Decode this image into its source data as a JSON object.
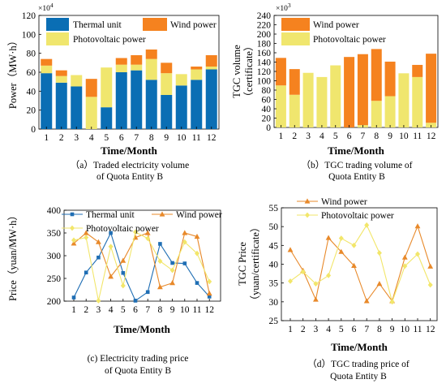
{
  "colors": {
    "thermal": "#0a6eb4",
    "wind": "#f5821f",
    "pv": "#f0e66e",
    "line_thermal": "#1f6eb4",
    "line_wind": "#e8892a",
    "line_pv": "#f2e66a"
  },
  "chart_data": [
    {
      "id": "a",
      "type": "bar",
      "stacked": true,
      "caption_line1": "（a）Traded electricity volume",
      "caption_line2": "of Quota Entity B",
      "xlabel": "Time/Month",
      "ylabel": "Power（MW·h）",
      "exponent": "×10",
      "exponent_power": "4",
      "ylim": [
        0,
        120
      ],
      "yticks": [
        0,
        20,
        40,
        60,
        80,
        100,
        120
      ],
      "categories": [
        "1",
        "2",
        "3",
        "4",
        "5",
        "6",
        "7",
        "8",
        "9",
        "10",
        "11",
        "12"
      ],
      "series": [
        {
          "name": "Thermal unit",
          "color_key": "thermal",
          "values": [
            59,
            49,
            45,
            0,
            23,
            60,
            62,
            52,
            36,
            46,
            52,
            63
          ]
        },
        {
          "name": "Photovoltaic power",
          "color_key": "pv",
          "values": [
            8,
            7,
            12,
            34,
            42,
            8,
            6,
            22,
            23,
            12,
            11,
            3
          ]
        },
        {
          "name": "Wind power",
          "color_key": "wind",
          "values": [
            7,
            6,
            0,
            19,
            0,
            7,
            10,
            10,
            11,
            0,
            3,
            12
          ]
        }
      ],
      "legend": [
        {
          "name": "Thermal unit",
          "color_key": "thermal"
        },
        {
          "name": "Wind power",
          "color_key": "wind"
        },
        {
          "name": "Photovoltaic power",
          "color_key": "pv"
        }
      ]
    },
    {
      "id": "b",
      "type": "bar",
      "stacked": true,
      "caption_line1": "（b）TGC trading volume of",
      "caption_line2": "Quota Entity B",
      "xlabel": "Time/Month",
      "ylabel_line1": "TGC volume",
      "ylabel_line2": "（certificate）",
      "exponent": "×10",
      "exponent_power": "3",
      "ylim": [
        0,
        240
      ],
      "yticks": [
        0,
        20,
        40,
        60,
        80,
        100,
        120,
        140,
        160,
        180,
        200,
        220,
        240
      ],
      "categories": [
        "1",
        "2",
        "3",
        "4",
        "5",
        "6",
        "7",
        "8",
        "9",
        "10",
        "11",
        "12"
      ],
      "series": [
        {
          "name": "Photovoltaic power",
          "color_key": "pv",
          "values": [
            90,
            70,
            117,
            108,
            133,
            0,
            5,
            57,
            67,
            116,
            108,
            10
          ]
        },
        {
          "name": "Wind power",
          "color_key": "wind",
          "values": [
            59,
            55,
            0,
            0,
            0,
            151,
            152,
            111,
            74,
            0,
            26,
            148
          ]
        }
      ],
      "legend": [
        {
          "name": "Wind power",
          "color_key": "wind"
        },
        {
          "name": "Photovoltaic power",
          "color_key": "pv"
        }
      ]
    },
    {
      "id": "c",
      "type": "line",
      "caption_line1": "(c)  Electricity trading price",
      "caption_line2": "of Quota Entity B",
      "xlabel": "Time/Month",
      "ylabel": "Price（yuan/MW·h）",
      "ylim": [
        200,
        400
      ],
      "yticks": [
        200,
        250,
        300,
        350,
        400
      ],
      "x": [
        "1",
        "2",
        "3",
        "4",
        "5",
        "6",
        "7",
        "8",
        "9",
        "10",
        "11",
        "12"
      ],
      "series": [
        {
          "name": "Thermal unit",
          "color_key": "line_thermal",
          "marker": "square",
          "values": [
            208,
            263,
            296,
            350,
            262,
            201,
            220,
            326,
            284,
            283,
            240,
            210
          ]
        },
        {
          "name": "Wind power",
          "color_key": "line_wind",
          "marker": "triangle",
          "values": [
            327,
            350,
            330,
            254,
            289,
            340,
            350,
            231,
            240,
            350,
            342,
            217
          ]
        },
        {
          "name": "Photovoltaic power",
          "color_key": "line_pv",
          "marker": "diamond",
          "values": [
            334,
            340,
            201,
            320,
            234,
            352,
            338,
            288,
            268,
            330,
            305,
            243
          ]
        }
      ],
      "legend": [
        {
          "name": "Thermal unit",
          "color_key": "line_thermal",
          "marker": "square"
        },
        {
          "name": "Wind power",
          "color_key": "line_wind",
          "marker": "triangle"
        },
        {
          "name": "Photovoltaic power",
          "color_key": "line_pv",
          "marker": "diamond"
        }
      ]
    },
    {
      "id": "d",
      "type": "line",
      "caption_line1": "（d）TGC trading price of",
      "caption_line2": "Quota Entity B",
      "xlabel": "Time/Month",
      "ylabel_line1": "TGC Price",
      "ylabel_line2": "（yuan/certificate）",
      "ylim": [
        25,
        55
      ],
      "yticks": [
        25,
        30,
        35,
        40,
        45,
        50,
        55
      ],
      "x": [
        "1",
        "2",
        "3",
        "4",
        "5",
        "6",
        "7",
        "8",
        "9",
        "10",
        "11",
        "12"
      ],
      "series": [
        {
          "name": "Wind power",
          "color_key": "line_wind",
          "marker": "triangle",
          "values": [
            43.8,
            38.3,
            30.6,
            47.0,
            43.3,
            39.6,
            30.2,
            34.8,
            30.2,
            41.8,
            50.1,
            39.4
          ]
        },
        {
          "name": "Photovoltaic power",
          "color_key": "line_pv",
          "marker": "diamond",
          "values": [
            35.5,
            38.0,
            34.8,
            37.0,
            46.9,
            45.0,
            50.4,
            43.0,
            30.0,
            39.5,
            42.7,
            34.5
          ]
        }
      ],
      "legend": [
        {
          "name": "Wind power",
          "color_key": "line_wind",
          "marker": "triangle"
        },
        {
          "name": "Photovoltaic power",
          "color_key": "line_pv",
          "marker": "diamond"
        }
      ]
    }
  ]
}
